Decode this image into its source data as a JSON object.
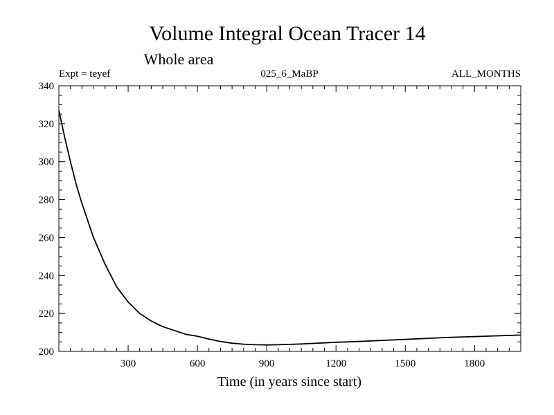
{
  "header": {
    "title": "Volume Integral Ocean Tracer 14",
    "subtitle": "Whole area",
    "expt_label": "Expt = teyef",
    "run_label": "025_6_MaBP",
    "period_label": "ALL_MONTHS"
  },
  "chart_data": {
    "type": "line",
    "title": "Volume Integral Ocean Tracer 14",
    "subtitle": "Whole area",
    "xlabel": "Time (in years since start)",
    "ylabel": "",
    "xlim": [
      0,
      2000
    ],
    "ylim": [
      200,
      340
    ],
    "x_ticks": [
      300,
      600,
      900,
      1200,
      1500,
      1800
    ],
    "y_ticks": [
      200,
      220,
      240,
      260,
      280,
      300,
      320,
      340
    ],
    "grid": false,
    "series": [
      {
        "color": "#000000",
        "x": [
          0,
          25,
          50,
          75,
          100,
          150,
          200,
          250,
          300,
          350,
          400,
          450,
          500,
          550,
          600,
          650,
          700,
          750,
          800,
          850,
          900,
          950,
          1000,
          1050,
          1100,
          1150,
          1200,
          1250,
          1300,
          1400,
          1500,
          1600,
          1700,
          1800,
          1900,
          2000
        ],
        "y": [
          327,
          313,
          300,
          288,
          278,
          260,
          246,
          234,
          226,
          220,
          216,
          213,
          211,
          209,
          208,
          206.5,
          205.2,
          204.3,
          203.8,
          203.5,
          203.4,
          203.5,
          203.7,
          203.9,
          204.2,
          204.5,
          204.8,
          205,
          205.2,
          205.8,
          206.3,
          206.9,
          207.4,
          207.8,
          208.2,
          208.6
        ]
      }
    ]
  }
}
